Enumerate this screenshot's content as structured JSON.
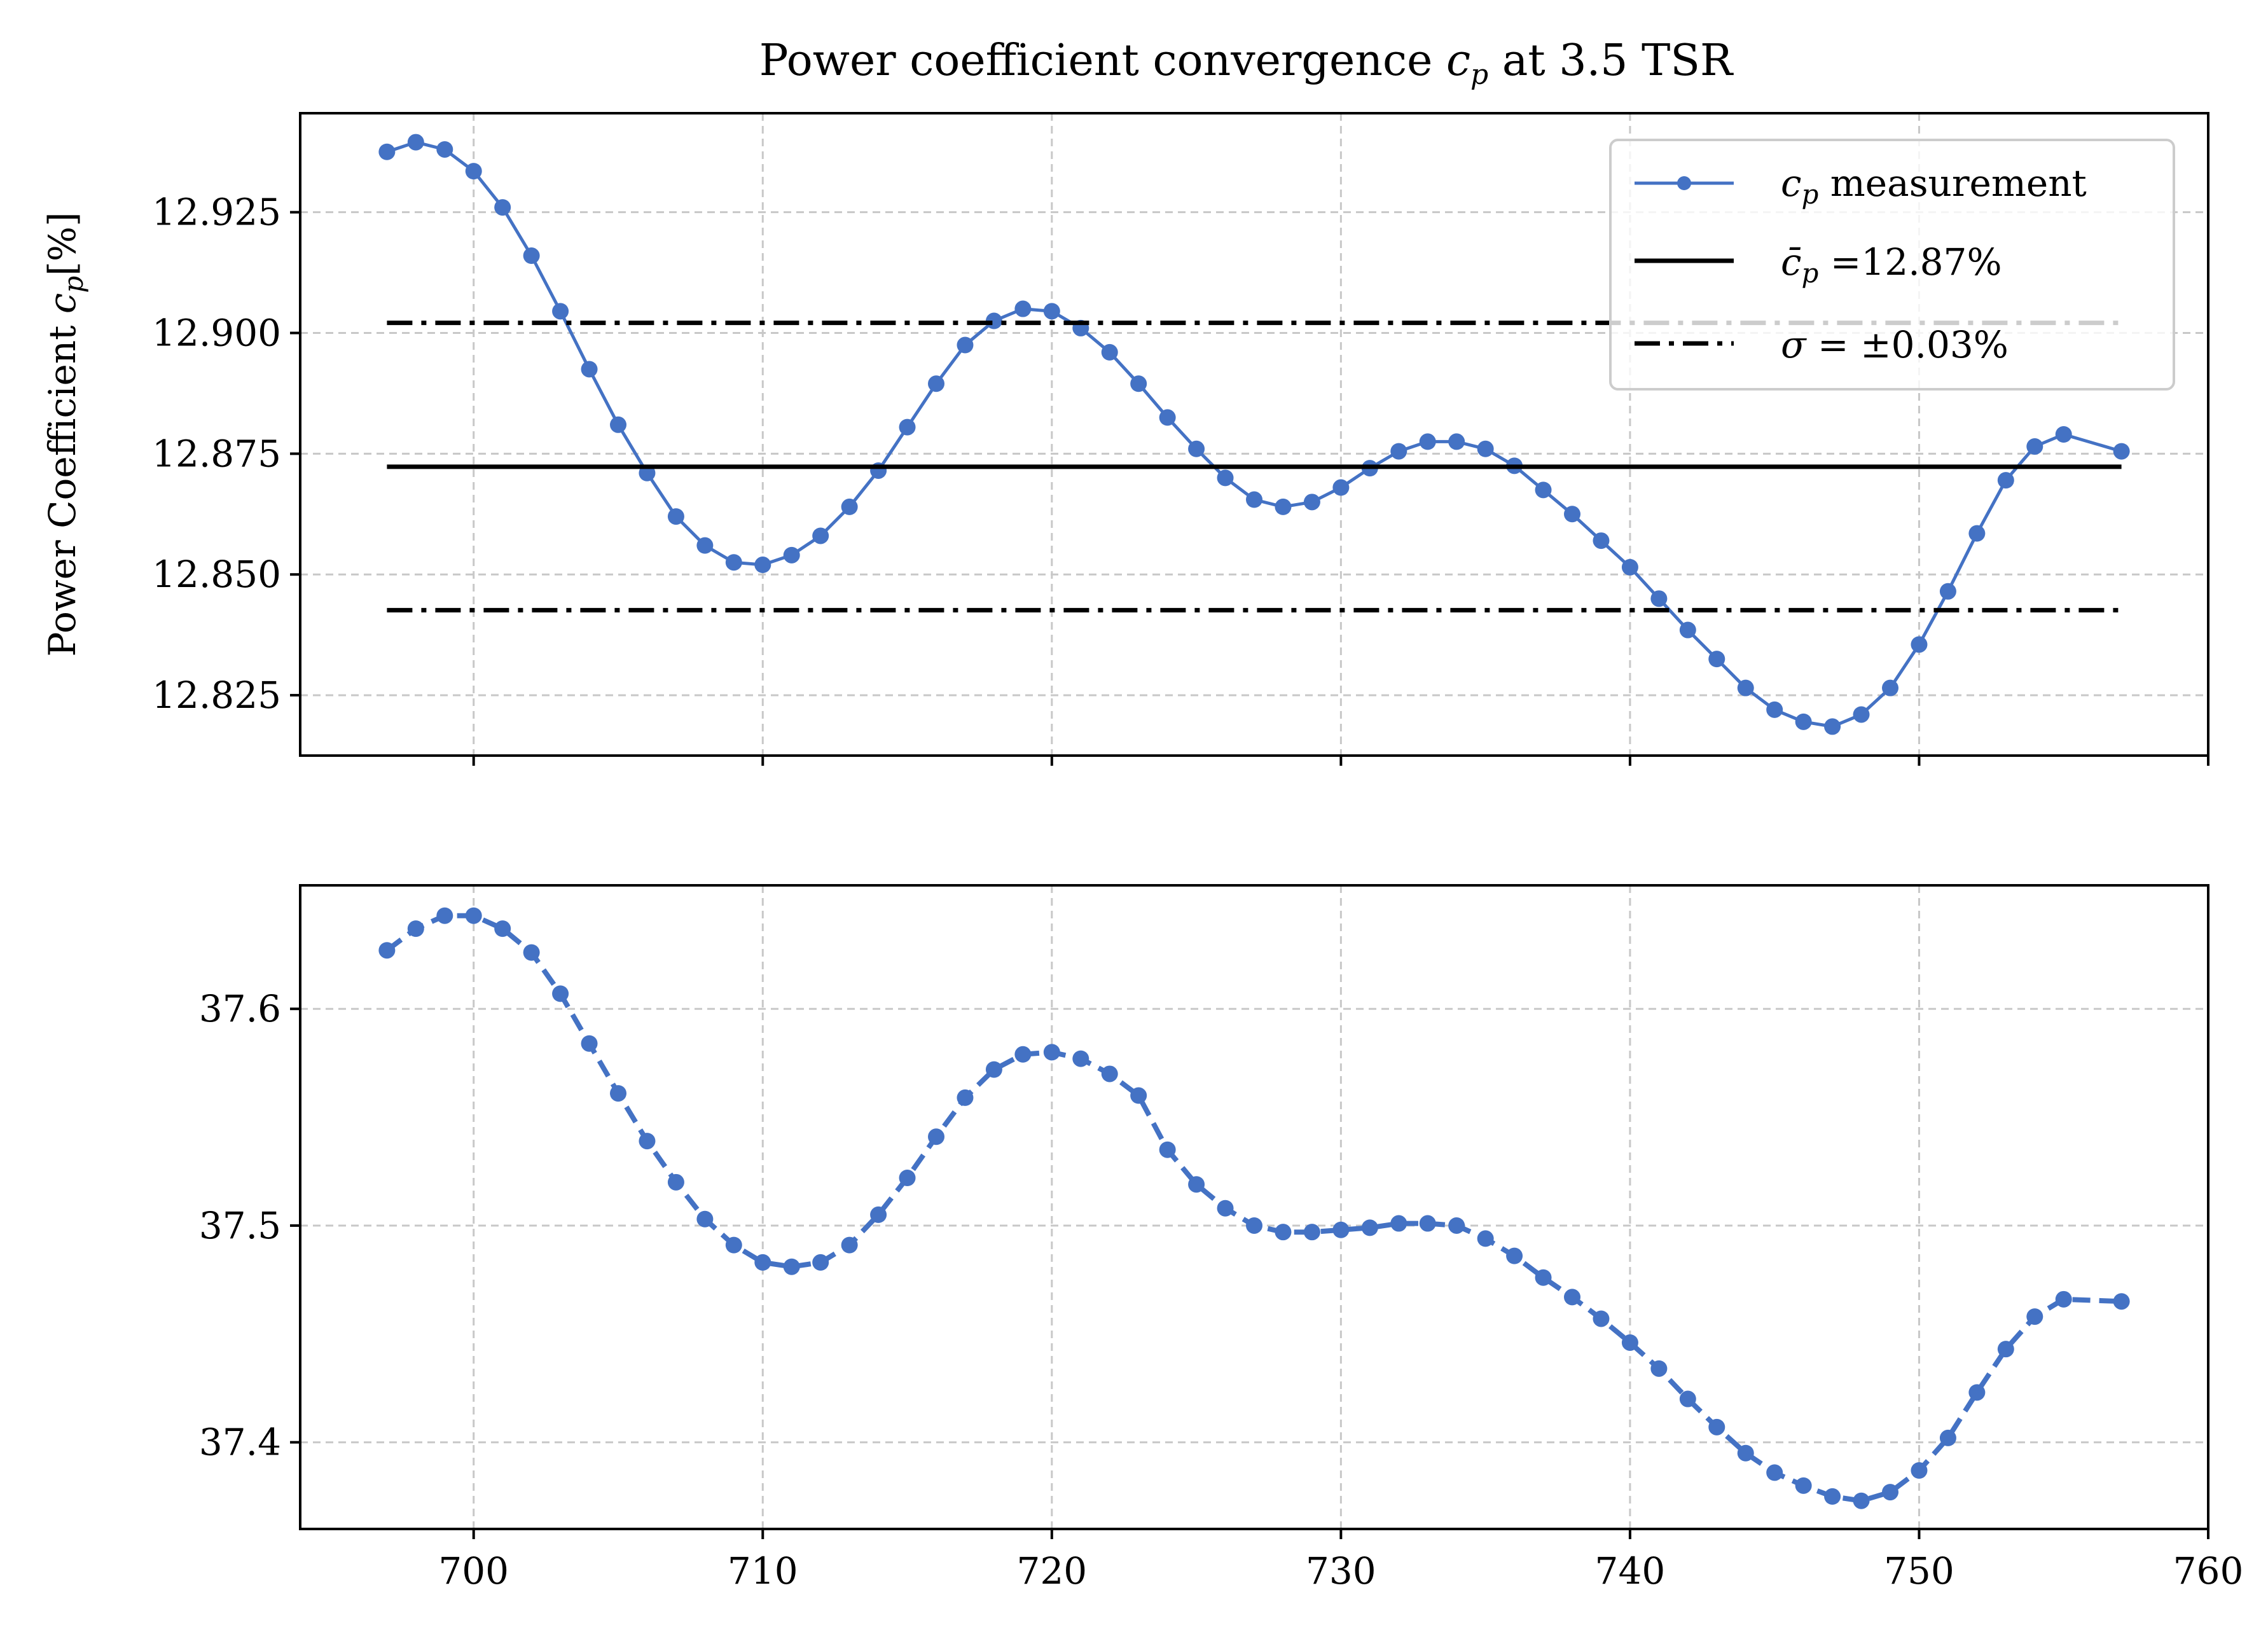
{
  "figure": {
    "title": "Power coefficient convergence c_p at 3.5 TSR"
  },
  "chart_data": [
    {
      "type": "line",
      "title": "Power coefficient convergence c_p at 3.5 TSR",
      "xlabel": "",
      "ylabel": "Power Coefficient c_p[%]",
      "xlim": [
        694,
        760
      ],
      "ylim": [
        12.8125,
        12.9455
      ],
      "xticks": [
        700,
        710,
        720,
        730,
        740,
        750,
        760
      ],
      "xtick_labels_visible": false,
      "yticks": [
        12.825,
        12.85,
        12.875,
        12.9,
        12.925
      ],
      "ytick_labels": [
        "12.825",
        "12.850",
        "12.875",
        "12.900",
        "12.925"
      ],
      "grid": true,
      "legend_position": "top-right",
      "series": [
        {
          "name": "c_p measurement",
          "style": "solid-line-with-dots",
          "color": "#4472c4",
          "x": [
            697,
            698,
            699,
            700,
            701,
            702,
            703,
            704,
            705,
            706,
            707,
            708,
            709,
            710,
            711,
            712,
            713,
            714,
            715,
            716,
            717,
            718,
            719,
            720,
            721,
            722,
            723,
            724,
            725,
            726,
            727,
            728,
            729,
            730,
            731,
            732,
            733,
            734,
            735,
            736,
            737,
            738,
            739,
            740,
            741,
            742,
            743,
            744,
            745,
            746,
            747,
            748,
            749,
            750,
            751,
            752,
            753,
            754,
            755,
            757
          ],
          "y": [
            12.9375,
            12.9395,
            12.938,
            12.9335,
            12.926,
            12.916,
            12.9045,
            12.8925,
            12.881,
            12.871,
            12.862,
            12.856,
            12.8525,
            12.852,
            12.854,
            12.858,
            12.864,
            12.8715,
            12.8805,
            12.8895,
            12.8975,
            12.9025,
            12.905,
            12.9045,
            12.901,
            12.896,
            12.8895,
            12.8825,
            12.876,
            12.87,
            12.8655,
            12.864,
            12.865,
            12.868,
            12.872,
            12.8755,
            12.8775,
            12.8775,
            12.876,
            12.8725,
            12.8675,
            12.8625,
            12.857,
            12.8515,
            12.845,
            12.8385,
            12.8325,
            12.8265,
            12.822,
            12.8195,
            12.8185,
            12.821,
            12.8265,
            12.8355,
            12.8465,
            12.8585,
            12.8695,
            12.8765,
            12.879,
            12.8755
          ]
        },
        {
          "name": "c̄_p =12.87%",
          "style": "solid",
          "color": "#000000",
          "x": [
            697,
            757
          ],
          "y": [
            12.8723,
            12.8723
          ]
        },
        {
          "name": "σ = ±0.03%",
          "style": "dash-dot",
          "color": "#000000",
          "x": [
            697,
            757
          ],
          "y": [
            12.9021,
            12.9021
          ]
        },
        {
          "name": "",
          "style": "dash-dot",
          "color": "#000000",
          "x": [
            697,
            757
          ],
          "y": [
            12.8426,
            12.8426
          ]
        }
      ]
    },
    {
      "type": "line",
      "title": "",
      "xlabel": "",
      "ylabel": "",
      "xlim": [
        694,
        760
      ],
      "ylim": [
        37.36,
        37.657
      ],
      "xticks": [
        700,
        710,
        720,
        730,
        740,
        750,
        760
      ],
      "xtick_labels": [
        "700",
        "710",
        "720",
        "730",
        "740",
        "750",
        "760"
      ],
      "yticks": [
        37.4,
        37.5,
        37.6
      ],
      "ytick_labels": [
        "37.4",
        "37.5",
        "37.6"
      ],
      "grid": true,
      "series": [
        {
          "name": "",
          "style": "dashed-line-with-dots",
          "color": "#4472c4",
          "x": [
            697,
            698,
            699,
            700,
            701,
            702,
            703,
            704,
            705,
            706,
            707,
            708,
            709,
            710,
            711,
            712,
            713,
            714,
            715,
            716,
            717,
            718,
            719,
            720,
            721,
            722,
            723,
            724,
            725,
            726,
            727,
            728,
            729,
            730,
            731,
            732,
            733,
            734,
            735,
            736,
            737,
            738,
            739,
            740,
            741,
            742,
            743,
            744,
            745,
            746,
            747,
            748,
            749,
            750,
            751,
            752,
            753,
            754,
            755,
            757
          ],
          "y": [
            37.627,
            37.637,
            37.643,
            37.643,
            37.637,
            37.626,
            37.607,
            37.584,
            37.561,
            37.539,
            37.52,
            37.503,
            37.491,
            37.483,
            37.481,
            37.483,
            37.491,
            37.505,
            37.522,
            37.541,
            37.559,
            37.572,
            37.579,
            37.58,
            37.577,
            37.57,
            37.56,
            37.535,
            37.519,
            37.508,
            37.5,
            37.497,
            37.497,
            37.498,
            37.499,
            37.501,
            37.501,
            37.5,
            37.494,
            37.486,
            37.476,
            37.467,
            37.457,
            37.446,
            37.434,
            37.42,
            37.407,
            37.395,
            37.386,
            37.38,
            37.375,
            37.373,
            37.377,
            37.387,
            37.402,
            37.423,
            37.443,
            37.458,
            37.466,
            37.465
          ]
        }
      ]
    }
  ]
}
